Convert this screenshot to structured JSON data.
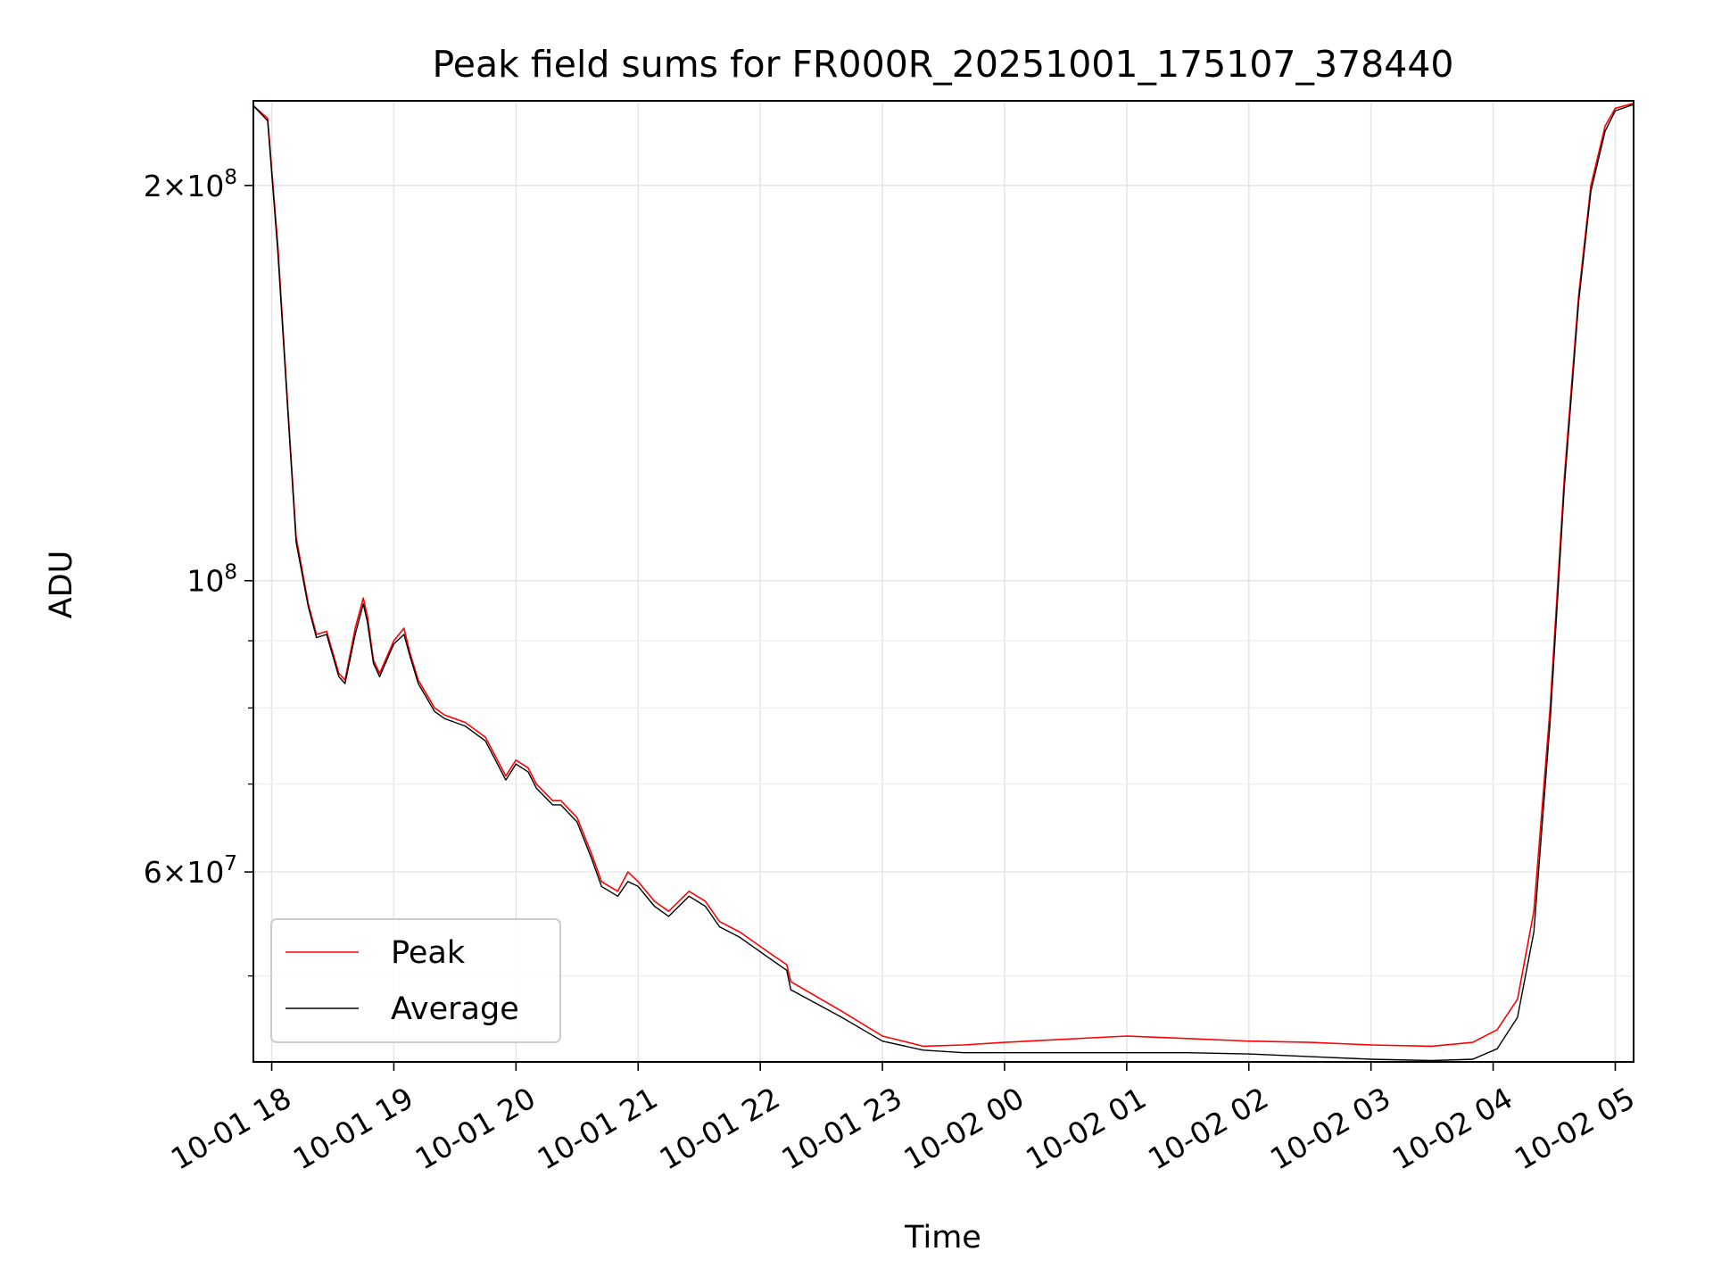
{
  "chart_data": {
    "type": "line",
    "title": "Peak field sums for FR000R_20251001_175107_378440",
    "xlabel": "Time",
    "ylabel": "ADU",
    "yscale": "log",
    "ylim": [
      43000000,
      232000000
    ],
    "xlim": [
      "2025-10-01 17:51",
      "2025-10-02 05:09"
    ],
    "grid": true,
    "legend_position": "lower-left",
    "x_ticks": [
      {
        "value": "2025-10-01 18:00",
        "label": "10-01 18"
      },
      {
        "value": "2025-10-01 19:00",
        "label": "10-01 19"
      },
      {
        "value": "2025-10-01 20:00",
        "label": "10-01 20"
      },
      {
        "value": "2025-10-01 21:00",
        "label": "10-01 21"
      },
      {
        "value": "2025-10-01 22:00",
        "label": "10-01 22"
      },
      {
        "value": "2025-10-01 23:00",
        "label": "10-01 23"
      },
      {
        "value": "2025-10-02 00:00",
        "label": "10-02 00"
      },
      {
        "value": "2025-10-02 01:00",
        "label": "10-02 01"
      },
      {
        "value": "2025-10-02 02:00",
        "label": "10-02 02"
      },
      {
        "value": "2025-10-02 03:00",
        "label": "10-02 03"
      },
      {
        "value": "2025-10-02 04:00",
        "label": "10-02 04"
      },
      {
        "value": "2025-10-02 05:00",
        "label": "10-02 05"
      }
    ],
    "y_major_ticks": [
      {
        "value": 60000000,
        "base": "6×10",
        "exp": "7"
      },
      {
        "value": 100000000,
        "base": "10",
        "exp": "8"
      },
      {
        "value": 200000000,
        "base": "2×10",
        "exp": "8"
      }
    ],
    "y_minor_ticks": [
      50000000,
      70000000,
      80000000,
      90000000
    ],
    "series": [
      {
        "name": "Peak",
        "color": "#ff0000",
        "x": [
          "2025-10-01 17:51",
          "2025-10-01 17:58",
          "2025-10-01 18:03",
          "2025-10-01 18:08",
          "2025-10-01 18:12",
          "2025-10-01 18:18",
          "2025-10-01 18:22",
          "2025-10-01 18:27",
          "2025-10-01 18:33",
          "2025-10-01 18:36",
          "2025-10-01 18:41",
          "2025-10-01 18:45",
          "2025-10-01 18:47",
          "2025-10-01 18:50",
          "2025-10-01 18:53",
          "2025-10-01 19:00",
          "2025-10-01 19:05",
          "2025-10-01 19:08",
          "2025-10-01 19:12",
          "2025-10-01 19:20",
          "2025-10-01 19:25",
          "2025-10-01 19:35",
          "2025-10-01 19:45",
          "2025-10-01 19:55",
          "2025-10-01 20:00",
          "2025-10-01 20:06",
          "2025-10-01 20:10",
          "2025-10-01 20:18",
          "2025-10-01 20:22",
          "2025-10-01 20:30",
          "2025-10-01 20:37",
          "2025-10-01 20:42",
          "2025-10-01 20:50",
          "2025-10-01 20:55",
          "2025-10-01 21:00",
          "2025-10-01 21:08",
          "2025-10-01 21:15",
          "2025-10-01 21:25",
          "2025-10-01 21:33",
          "2025-10-01 21:40",
          "2025-10-01 21:50",
          "2025-10-01 22:05",
          "2025-10-01 22:13",
          "2025-10-01 22:15",
          "2025-10-01 22:40",
          "2025-10-01 23:00",
          "2025-10-01 23:20",
          "2025-10-01 23:40",
          "2025-10-02 00:00",
          "2025-10-02 01:00",
          "2025-10-02 01:30",
          "2025-10-02 02:00",
          "2025-10-02 02:30",
          "2025-10-02 03:00",
          "2025-10-02 03:30",
          "2025-10-02 03:50",
          "2025-10-02 04:02",
          "2025-10-02 04:12",
          "2025-10-02 04:20",
          "2025-10-02 04:28",
          "2025-10-02 04:35",
          "2025-10-02 04:42",
          "2025-10-02 04:48",
          "2025-10-02 04:55",
          "2025-10-02 05:00",
          "2025-10-02 05:09"
        ],
        "y": [
          230000000,
          225000000,
          180000000,
          135000000,
          108000000,
          96000000,
          91000000,
          91500000,
          85000000,
          84000000,
          92000000,
          97000000,
          94000000,
          87000000,
          85000000,
          90000000,
          92000000,
          88000000,
          84000000,
          80000000,
          79000000,
          78000000,
          76000000,
          71000000,
          73000000,
          72000000,
          70000000,
          68000000,
          68000000,
          66000000,
          62000000,
          59000000,
          58000000,
          60000000,
          59000000,
          57000000,
          56000000,
          58000000,
          57000000,
          55000000,
          54000000,
          52000000,
          51000000,
          49500000,
          47000000,
          45000000,
          44200000,
          44300000,
          44500000,
          45000000,
          44800000,
          44600000,
          44500000,
          44300000,
          44200000,
          44500000,
          45500000,
          48000000,
          56000000,
          80000000,
          120000000,
          165000000,
          200000000,
          222000000,
          229000000,
          231000000
        ]
      },
      {
        "name": "Average",
        "color": "#000000",
        "x": [
          "2025-10-01 17:51",
          "2025-10-01 17:58",
          "2025-10-01 18:03",
          "2025-10-01 18:08",
          "2025-10-01 18:12",
          "2025-10-01 18:18",
          "2025-10-01 18:22",
          "2025-10-01 18:27",
          "2025-10-01 18:33",
          "2025-10-01 18:36",
          "2025-10-01 18:41",
          "2025-10-01 18:45",
          "2025-10-01 18:47",
          "2025-10-01 18:50",
          "2025-10-01 18:53",
          "2025-10-01 19:00",
          "2025-10-01 19:05",
          "2025-10-01 19:08",
          "2025-10-01 19:12",
          "2025-10-01 19:20",
          "2025-10-01 19:25",
          "2025-10-01 19:35",
          "2025-10-01 19:45",
          "2025-10-01 19:55",
          "2025-10-01 20:00",
          "2025-10-01 20:06",
          "2025-10-01 20:10",
          "2025-10-01 20:18",
          "2025-10-01 20:22",
          "2025-10-01 20:30",
          "2025-10-01 20:37",
          "2025-10-01 20:42",
          "2025-10-01 20:50",
          "2025-10-01 20:55",
          "2025-10-01 21:00",
          "2025-10-01 21:08",
          "2025-10-01 21:15",
          "2025-10-01 21:25",
          "2025-10-01 21:33",
          "2025-10-01 21:40",
          "2025-10-01 21:50",
          "2025-10-01 22:05",
          "2025-10-01 22:13",
          "2025-10-01 22:15",
          "2025-10-01 22:40",
          "2025-10-01 23:00",
          "2025-10-01 23:20",
          "2025-10-01 23:40",
          "2025-10-02 00:00",
          "2025-10-02 01:00",
          "2025-10-02 01:30",
          "2025-10-02 02:00",
          "2025-10-02 02:30",
          "2025-10-02 03:00",
          "2025-10-02 03:30",
          "2025-10-02 03:50",
          "2025-10-02 04:02",
          "2025-10-02 04:12",
          "2025-10-02 04:20",
          "2025-10-02 04:28",
          "2025-10-02 04:35",
          "2025-10-02 04:42",
          "2025-10-02 04:48",
          "2025-10-02 04:55",
          "2025-10-02 05:00",
          "2025-10-02 05:09"
        ],
        "y": [
          230000000,
          224000000,
          178000000,
          134000000,
          107000000,
          95500000,
          90500000,
          91000000,
          84500000,
          83500000,
          91000000,
          96000000,
          93000000,
          86500000,
          84500000,
          89500000,
          91000000,
          87500000,
          83500000,
          79500000,
          78500000,
          77500000,
          75500000,
          70500000,
          72500000,
          71500000,
          69500000,
          67500000,
          67500000,
          65500000,
          61500000,
          58500000,
          57500000,
          59000000,
          58500000,
          56500000,
          55500000,
          57500000,
          56500000,
          54500000,
          53500000,
          51500000,
          50500000,
          48800000,
          46500000,
          44600000,
          43900000,
          43700000,
          43700000,
          43700000,
          43700000,
          43600000,
          43400000,
          43200000,
          43100000,
          43200000,
          44000000,
          46500000,
          54000000,
          78000000,
          118000000,
          163000000,
          198000000,
          220000000,
          228000000,
          230500000
        ]
      }
    ]
  }
}
